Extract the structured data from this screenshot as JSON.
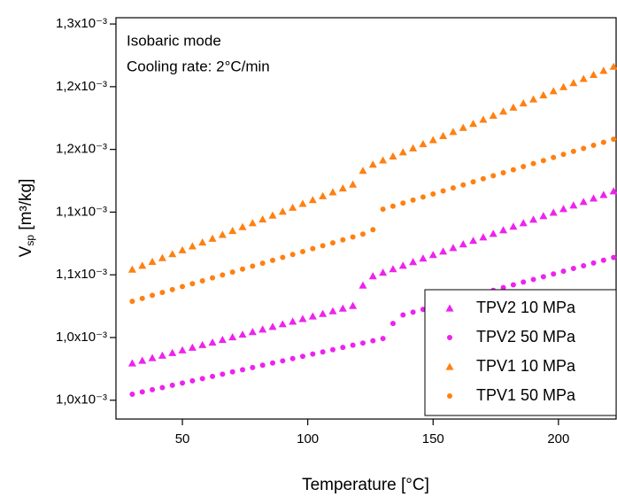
{
  "chart_data": {
    "type": "scatter",
    "annotations": [
      "Isobaric mode",
      "Cooling rate: 2°C/min"
    ],
    "xlabel": "Temperature [°C]",
    "ylabel": "V",
    "ylabel_sub": "sp",
    "ylabel_unit": " [m³/kg]",
    "xlim": [
      23.5,
      223
    ],
    "xticks": [
      50,
      100,
      150,
      200
    ],
    "ylim": [
      0.00096,
      0.00128
    ],
    "yticks": [
      {
        "value": 0.000975,
        "label": "1,0x10⁻³"
      },
      {
        "value": 0.001025,
        "label": "1,0x10⁻³"
      },
      {
        "value": 0.001075,
        "label": "1,1x10⁻³"
      },
      {
        "value": 0.001125,
        "label": "1,1x10⁻³"
      },
      {
        "value": 0.001175,
        "label": "1,2x10⁻³"
      },
      {
        "value": 0.001225,
        "label": "1,2x10⁻³"
      },
      {
        "value": 0.001275,
        "label": "1,3x10⁻³"
      }
    ],
    "legend": "lower right",
    "x": [
      30,
      34,
      38,
      42,
      46,
      50,
      54,
      58,
      62,
      66,
      70,
      74,
      78,
      82,
      86,
      90,
      94,
      98,
      102,
      106,
      110,
      114,
      118,
      122,
      126,
      130,
      134,
      138,
      142,
      146,
      150,
      154,
      158,
      162,
      166,
      170,
      174,
      178,
      182,
      186,
      190,
      194,
      198,
      202,
      206,
      210,
      214,
      218,
      222
    ],
    "series": [
      {
        "name": "TPV2 10 MPa",
        "color": "#ee22ee",
        "marker": "triangle",
        "values": [
          0.0010045,
          0.0010066,
          0.0010087,
          0.0010107,
          0.0010128,
          0.0010149,
          0.001017,
          0.0010191,
          0.0010211,
          0.0010232,
          0.0010253,
          0.0010274,
          0.0010295,
          0.0010315,
          0.0010336,
          0.0010357,
          0.0010378,
          0.0010399,
          0.0010419,
          0.001044,
          0.0010461,
          0.0010482,
          0.0010503,
          0.0010666,
          0.001074,
          0.0010768,
          0.0010796,
          0.0010824,
          0.0010853,
          0.0010881,
          0.0010909,
          0.0010937,
          0.0010965,
          0.0010994,
          0.0011022,
          0.001105,
          0.0011078,
          0.0011106,
          0.0011135,
          0.0011163,
          0.0011191,
          0.0011219,
          0.0011247,
          0.0011276,
          0.0011304,
          0.0011332,
          0.001136,
          0.0011388,
          0.0011417
        ]
      },
      {
        "name": "TPV2 50 MPa",
        "color": "#ee22ee",
        "marker": "circle",
        "values": [
          0.0009798,
          0.0009816,
          0.0009834,
          0.0009851,
          0.0009869,
          0.0009887,
          0.0009905,
          0.0009922,
          0.000994,
          0.0009958,
          0.0009976,
          0.0009993,
          0.0010011,
          0.0010029,
          0.0010047,
          0.0010064,
          0.0010082,
          0.00101,
          0.0010118,
          0.0010135,
          0.0010153,
          0.0010171,
          0.0010189,
          0.0010206,
          0.0010224,
          0.0010242,
          0.0010362,
          0.001043,
          0.0010452,
          0.0010474,
          0.0010495,
          0.0010517,
          0.0010539,
          0.0010561,
          0.0010583,
          0.0010604,
          0.0010626,
          0.0010648,
          0.001067,
          0.0010692,
          0.0010713,
          0.0010735,
          0.0010757,
          0.0010779,
          0.0010801,
          0.0010822,
          0.0010844,
          0.0010866,
          0.0010888
        ]
      },
      {
        "name": "TPV1 10 MPa",
        "color": "#ff8010",
        "marker": "triangle",
        "values": [
          0.0010793,
          0.0010824,
          0.0010855,
          0.0010885,
          0.0010916,
          0.0010947,
          0.0010978,
          0.0011009,
          0.0011039,
          0.001107,
          0.0011101,
          0.0011132,
          0.0011163,
          0.0011193,
          0.0011224,
          0.0011255,
          0.0011286,
          0.0011317,
          0.0011347,
          0.0011378,
          0.0011409,
          0.001144,
          0.0011471,
          0.001158,
          0.001163,
          0.0011663,
          0.0011695,
          0.0011728,
          0.001176,
          0.0011793,
          0.0011825,
          0.0011858,
          0.001189,
          0.0011923,
          0.0011955,
          0.0011988,
          0.001202,
          0.0012053,
          0.0012085,
          0.0012118,
          0.001215,
          0.0012183,
          0.0012215,
          0.0012248,
          0.001228,
          0.0012313,
          0.0012345,
          0.0012378,
          0.001241
        ]
      },
      {
        "name": "TPV1 50 MPa",
        "color": "#ff8010",
        "marker": "circle",
        "values": [
          0.0010539,
          0.0010562,
          0.0010586,
          0.0010609,
          0.0010632,
          0.0010656,
          0.0010679,
          0.0010702,
          0.0010726,
          0.0010749,
          0.0010772,
          0.0010796,
          0.0010819,
          0.0010842,
          0.0010865,
          0.0010889,
          0.0010912,
          0.0010935,
          0.0010959,
          0.0010982,
          0.0011005,
          0.0011029,
          0.0011052,
          0.0011075,
          0.001111,
          0.0011273,
          0.0011297,
          0.0011322,
          0.0011346,
          0.001137,
          0.0011394,
          0.0011419,
          0.0011443,
          0.0011467,
          0.0011491,
          0.0011516,
          0.001154,
          0.0011564,
          0.0011588,
          0.0011613,
          0.0011637,
          0.0011661,
          0.0011686,
          0.001171,
          0.0011734,
          0.0011758,
          0.0011783,
          0.0011807,
          0.0011831
        ]
      }
    ]
  }
}
